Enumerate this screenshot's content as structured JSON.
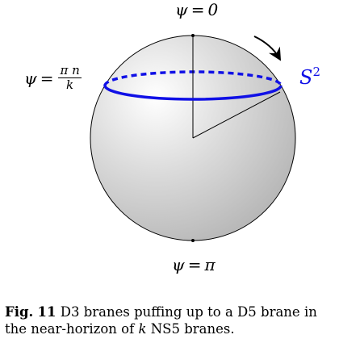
{
  "labels": {
    "top": {
      "symbol": "ψ",
      "equals": "=",
      "value": "0"
    },
    "bottom": {
      "symbol": "ψ",
      "equals": "=",
      "value": "π"
    },
    "middle": {
      "symbol": "ψ",
      "equals": "=",
      "numerator": "π n",
      "denominator": "k"
    },
    "sphere": {
      "base": "S",
      "exponent": "2"
    }
  },
  "caption": {
    "prefix": "Fig.",
    "number": "11",
    "text_part1": "D3 branes puffing up to a D5 brane in the near-horizon of ",
    "variable": "k",
    "text_part2": " NS5 branes."
  },
  "colors": {
    "brane_ring": "#1010e6",
    "sphere_outline": "#000000",
    "sphere_highlight": "#ffffff",
    "sphere_shadow": "#b4b4b4"
  }
}
